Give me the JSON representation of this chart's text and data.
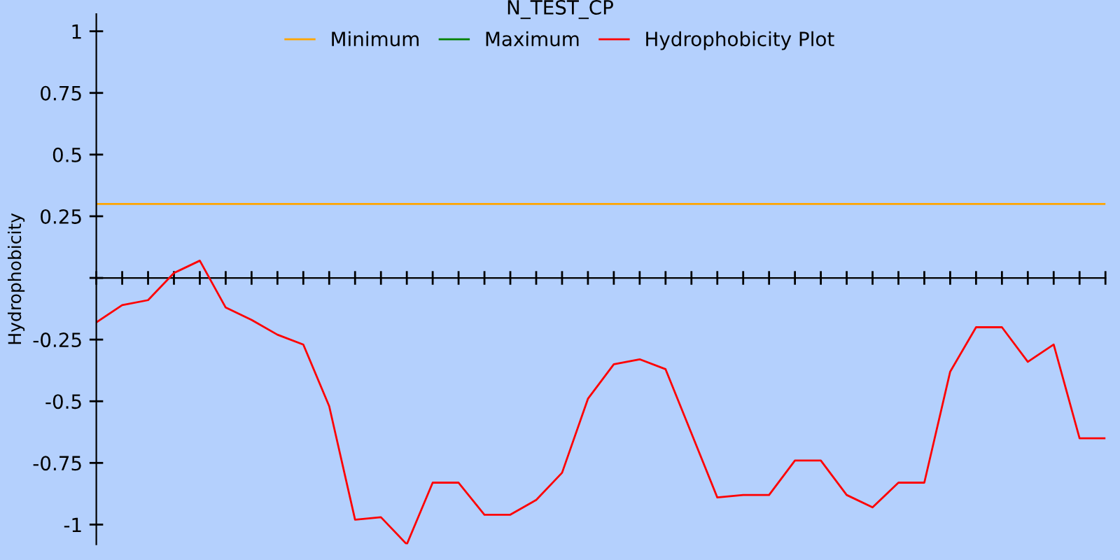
{
  "chart_data": {
    "type": "line",
    "title": "N_TEST_CP",
    "ylabel": "Hydrophobicity",
    "categories": [
      null,
      null,
      null,
      null,
      null,
      null,
      null,
      null,
      null,
      null,
      null,
      null,
      null,
      null,
      null,
      null,
      null,
      null,
      null,
      null,
      null,
      null,
      null,
      null,
      null,
      null,
      null,
      null,
      null,
      null,
      null,
      null,
      null,
      null,
      null,
      null,
      null,
      null,
      null,
      null
    ],
    "series": [
      {
        "name": "Minimum",
        "color": "#ffa500",
        "values": [
          0.3,
          0.3,
          0.3,
          0.3,
          0.3,
          0.3,
          0.3,
          0.3,
          0.3,
          0.3,
          0.3,
          0.3,
          0.3,
          0.3,
          0.3,
          0.3,
          0.3,
          0.3,
          0.3,
          0.3,
          0.3,
          0.3,
          0.3,
          0.3,
          0.3,
          0.3,
          0.3,
          0.3,
          0.3,
          0.3,
          0.3,
          0.3,
          0.3,
          0.3,
          0.3,
          0.3,
          0.3,
          0.3,
          0.3,
          0.3
        ]
      },
      {
        "name": "Maximum",
        "color": "#008000",
        "values": [
          null,
          null,
          null,
          null,
          null,
          null,
          null,
          null,
          null,
          null,
          null,
          null,
          null,
          null,
          null,
          null,
          null,
          null,
          null,
          null,
          null,
          null,
          null,
          null,
          null,
          null,
          null,
          null,
          null,
          null,
          null,
          null,
          null,
          null,
          null,
          null,
          null,
          null,
          null,
          null
        ]
      },
      {
        "name": "Hydrophobicity Plot",
        "color": "#ff0000",
        "values": [
          -0.18,
          -0.11,
          -0.09,
          0.02,
          0.07,
          -0.12,
          -0.17,
          -0.23,
          -0.27,
          -0.52,
          -0.98,
          -0.97,
          -1.08,
          -0.83,
          -0.83,
          -0.96,
          -0.96,
          -0.9,
          -0.79,
          -0.49,
          -0.35,
          -0.33,
          -0.37,
          -0.63,
          -0.89,
          -0.88,
          -0.88,
          -0.74,
          -0.74,
          -0.88,
          -0.93,
          -0.83,
          -0.83,
          -0.38,
          -0.2,
          -0.2,
          -0.34,
          -0.27,
          -0.65,
          -0.65
        ]
      }
    ],
    "ylim": [
      -1.08,
      1.07
    ],
    "yticks": [
      1,
      0.75,
      0.5,
      0.25,
      {
        "value": 0,
        "label": null
      },
      -0.25,
      -0.5,
      -0.75,
      -1
    ],
    "tick_labels": "y",
    "legend": "top",
    "marker": "none",
    "line_style": "solid"
  }
}
